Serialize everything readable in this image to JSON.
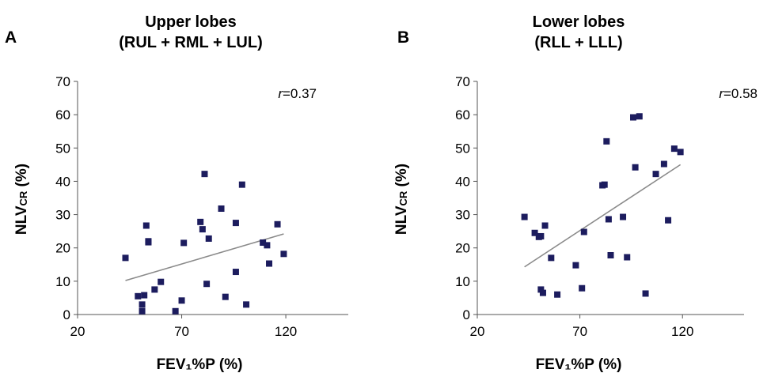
{
  "chart_data": [
    {
      "type": "scatter",
      "panel": "A",
      "title": [
        "Upper lobes",
        "(RUL + RML + LUL)"
      ],
      "xlabel": "FEV₁%P (%)",
      "ylabel_main": "NLV",
      "ylabel_sub": "CR",
      "ylabel_unit": " (%)",
      "annotation_r": "r",
      "annotation_val": "=0.37",
      "xlim": [
        20,
        150
      ],
      "ylim": [
        0,
        70
      ],
      "xticks": [
        20,
        70,
        120
      ],
      "yticks": [
        0,
        10,
        20,
        30,
        40,
        50,
        60,
        70
      ],
      "grid": false,
      "marker_color": "#1c1c5e",
      "trend_color": "#8a8a8a",
      "trendline": [
        [
          43,
          10.2
        ],
        [
          119,
          24.2
        ]
      ],
      "points": [
        [
          43,
          17
        ],
        [
          49,
          5.5
        ],
        [
          51,
          3
        ],
        [
          51,
          1
        ],
        [
          52,
          5.8
        ],
        [
          53,
          26.7
        ],
        [
          54,
          22
        ],
        [
          54,
          21.7
        ],
        [
          57,
          7.5
        ],
        [
          60,
          9.8
        ],
        [
          67,
          1
        ],
        [
          70,
          4.2
        ],
        [
          71,
          21.5
        ],
        [
          79,
          27.8
        ],
        [
          80,
          25.6
        ],
        [
          81,
          42.2
        ],
        [
          82,
          9.2
        ],
        [
          83,
          22.8
        ],
        [
          89,
          31.8
        ],
        [
          91,
          5.3
        ],
        [
          96,
          27.5
        ],
        [
          96,
          12.8
        ],
        [
          99,
          39
        ],
        [
          101,
          3
        ],
        [
          109,
          21.6
        ],
        [
          111,
          20.8
        ],
        [
          112,
          15.3
        ],
        [
          116,
          27.1
        ],
        [
          119,
          18.2
        ]
      ]
    },
    {
      "type": "scatter",
      "panel": "B",
      "title": [
        "Lower lobes",
        "(RLL + LLL)"
      ],
      "xlabel": "FEV₁%P (%)",
      "ylabel_main": "NLV",
      "ylabel_sub": "CR",
      "ylabel_unit": " (%)",
      "annotation_r": "r",
      "annotation_val": "=0.58",
      "xlim": [
        20,
        150
      ],
      "ylim": [
        0,
        70
      ],
      "xticks": [
        20,
        70,
        120
      ],
      "yticks": [
        0,
        10,
        20,
        30,
        40,
        50,
        60,
        70
      ],
      "grid": false,
      "marker_color": "#1c1c5e",
      "trend_color": "#8a8a8a",
      "trendline": [
        [
          43,
          14.3
        ],
        [
          119,
          45
        ]
      ],
      "points": [
        [
          43,
          29.3
        ],
        [
          48,
          24.5
        ],
        [
          50,
          23.3
        ],
        [
          51,
          23.5
        ],
        [
          51,
          7.5
        ],
        [
          52,
          6.5
        ],
        [
          53,
          26.7
        ],
        [
          56,
          17
        ],
        [
          59,
          6
        ],
        [
          68,
          14.8
        ],
        [
          71,
          7.9
        ],
        [
          72,
          24.8
        ],
        [
          81,
          38.8
        ],
        [
          82,
          39
        ],
        [
          83,
          52
        ],
        [
          84,
          28.6
        ],
        [
          85,
          17.8
        ],
        [
          91,
          29.3
        ],
        [
          93,
          17.2
        ],
        [
          96,
          59.2
        ],
        [
          97,
          44.2
        ],
        [
          99,
          59.5
        ],
        [
          102,
          6.3
        ],
        [
          107,
          42.2
        ],
        [
          111,
          45.2
        ],
        [
          113,
          28.3
        ],
        [
          116,
          49.8
        ],
        [
          119,
          48.8
        ]
      ]
    }
  ]
}
